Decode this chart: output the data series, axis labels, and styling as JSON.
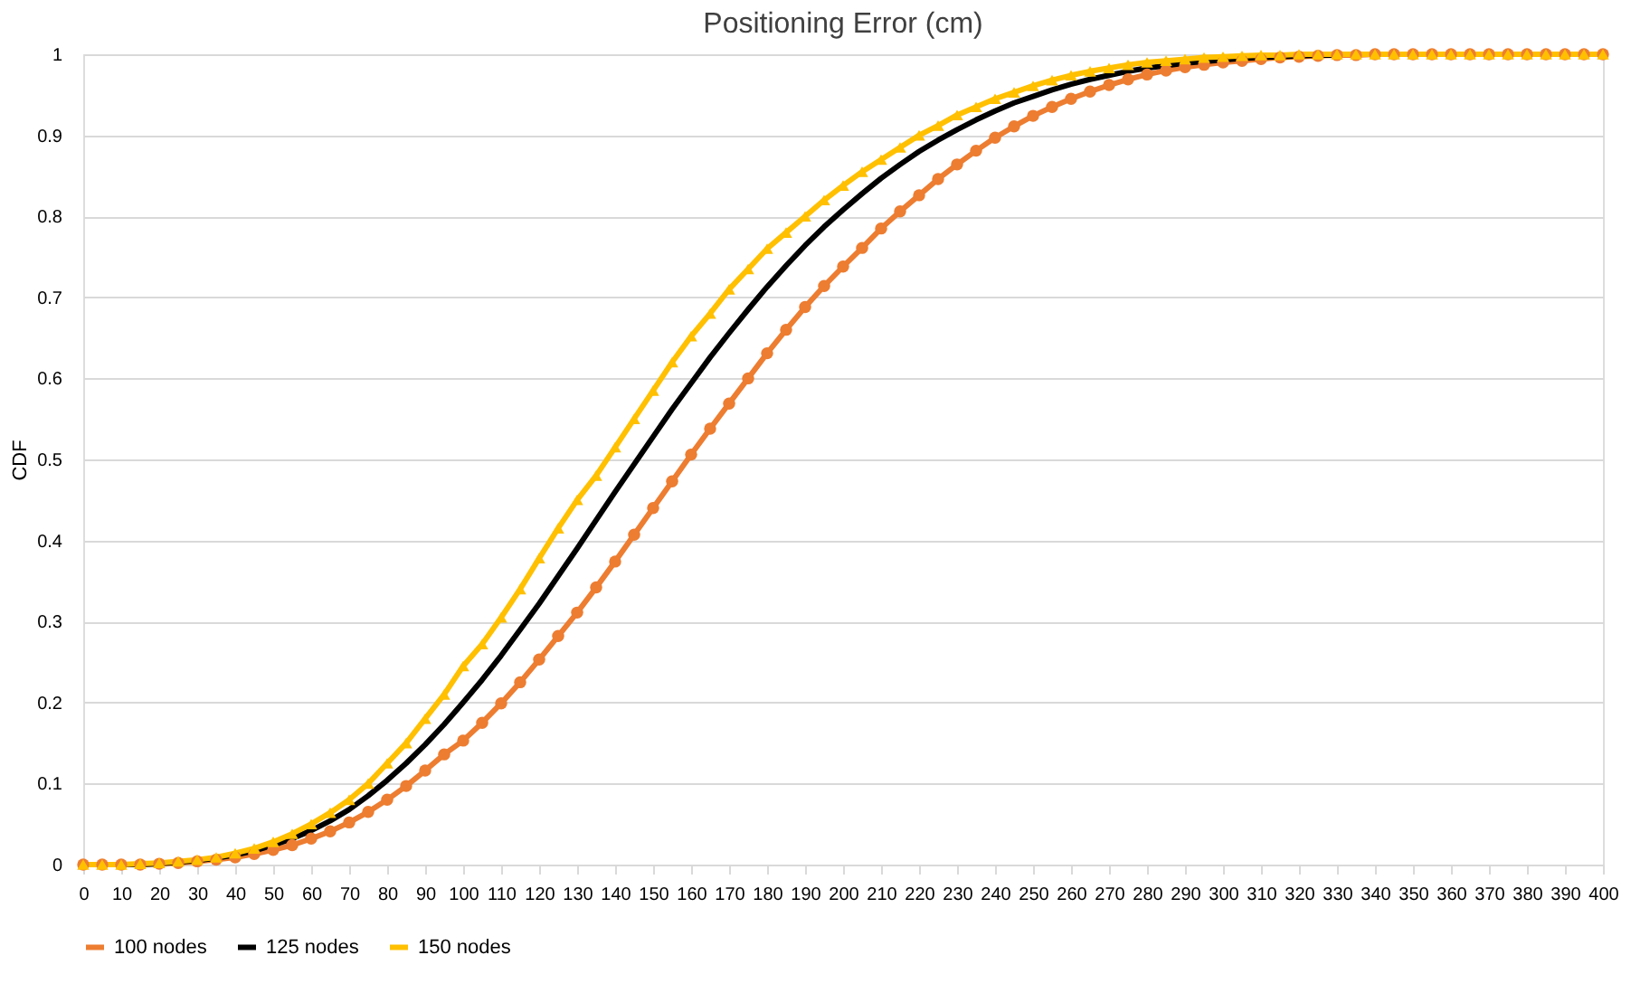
{
  "chart_data": {
    "type": "line",
    "title": "Positioning Error (cm)",
    "ylabel": "CDF",
    "x": [
      0,
      5,
      10,
      15,
      20,
      25,
      30,
      35,
      40,
      45,
      50,
      55,
      60,
      65,
      70,
      75,
      80,
      85,
      90,
      95,
      100,
      105,
      110,
      115,
      120,
      125,
      130,
      135,
      140,
      145,
      150,
      155,
      160,
      165,
      170,
      175,
      180,
      185,
      190,
      195,
      200,
      205,
      210,
      215,
      220,
      225,
      230,
      235,
      240,
      245,
      250,
      255,
      260,
      265,
      270,
      275,
      280,
      285,
      290,
      295,
      300,
      305,
      310,
      315,
      320,
      325,
      330,
      335,
      340,
      345,
      350,
      355,
      360,
      365,
      370,
      375,
      380,
      385,
      390,
      395,
      400
    ],
    "xlim": [
      0,
      400
    ],
    "xticks": [
      0,
      10,
      20,
      30,
      40,
      50,
      60,
      70,
      80,
      90,
      100,
      110,
      120,
      130,
      140,
      150,
      160,
      170,
      180,
      190,
      200,
      210,
      220,
      230,
      240,
      250,
      260,
      270,
      280,
      290,
      300,
      310,
      320,
      330,
      340,
      350,
      360,
      370,
      380,
      390,
      400
    ],
    "ylim": [
      0,
      1
    ],
    "yticks": [
      0,
      0.1,
      0.2,
      0.3,
      0.4,
      0.5,
      0.6,
      0.7,
      0.8,
      0.9,
      1
    ],
    "grid": "y",
    "legend": "bottom",
    "series": [
      {
        "name": "100 nodes",
        "color": "#ed7d31",
        "marker": "circle",
        "values": [
          0,
          0,
          0,
          0,
          0.001,
          0.002,
          0.004,
          0.006,
          0.009,
          0.013,
          0.018,
          0.024,
          0.032,
          0.041,
          0.052,
          0.065,
          0.08,
          0.097,
          0.116,
          0.136,
          0.153,
          0.175,
          0.199,
          0.225,
          0.253,
          0.282,
          0.311,
          0.342,
          0.374,
          0.407,
          0.44,
          0.473,
          0.506,
          0.538,
          0.569,
          0.6,
          0.631,
          0.66,
          0.688,
          0.714,
          0.738,
          0.761,
          0.785,
          0.806,
          0.826,
          0.846,
          0.864,
          0.881,
          0.897,
          0.911,
          0.924,
          0.935,
          0.945,
          0.954,
          0.962,
          0.969,
          0.975,
          0.98,
          0.984,
          0.987,
          0.99,
          0.992,
          0.994,
          0.996,
          0.997,
          0.998,
          0.999,
          0.999,
          1,
          1,
          1,
          1,
          1,
          1,
          1,
          1,
          1,
          1,
          1,
          1,
          1
        ]
      },
      {
        "name": "125 nodes",
        "color": "#000000",
        "marker": "none",
        "values": [
          null,
          null,
          0,
          0,
          0.001,
          0.003,
          0.005,
          0.008,
          0.012,
          0.017,
          0.024,
          0.032,
          0.042,
          0.054,
          0.068,
          0.085,
          0.104,
          0.125,
          0.148,
          0.173,
          0.2,
          0.228,
          0.258,
          0.29,
          0.322,
          0.356,
          0.39,
          0.425,
          0.46,
          0.494,
          0.528,
          0.562,
          0.594,
          0.626,
          0.656,
          0.685,
          0.713,
          0.739,
          0.764,
          0.787,
          0.808,
          0.828,
          0.847,
          0.864,
          0.88,
          0.894,
          0.907,
          0.919,
          0.93,
          0.94,
          0.948,
          0.956,
          0.963,
          0.969,
          0.974,
          0.979,
          0.983,
          0.986,
          0.989,
          0.991,
          0.993,
          0.995,
          0.996,
          0.997,
          0.998,
          0.999,
          0.999,
          null,
          null,
          null,
          null,
          null,
          null,
          null,
          null,
          null,
          null,
          null,
          null,
          null,
          null
        ]
      },
      {
        "name": "150 nodes",
        "color": "#ffc000",
        "marker": "triangle",
        "values": [
          0,
          0,
          0,
          0.001,
          0.002,
          0.004,
          0.006,
          0.009,
          0.014,
          0.02,
          0.028,
          0.038,
          0.05,
          0.064,
          0.08,
          0.1,
          0.125,
          0.15,
          0.18,
          0.21,
          0.245,
          0.272,
          0.305,
          0.34,
          0.378,
          0.415,
          0.45,
          0.48,
          0.515,
          0.55,
          0.585,
          0.62,
          0.652,
          0.68,
          0.71,
          0.735,
          0.76,
          0.78,
          0.8,
          0.82,
          0.838,
          0.855,
          0.87,
          0.885,
          0.9,
          0.912,
          0.925,
          0.935,
          0.945,
          0.953,
          0.961,
          0.968,
          0.974,
          0.979,
          0.983,
          0.987,
          0.99,
          0.992,
          0.994,
          0.996,
          0.997,
          0.998,
          0.999,
          0.999,
          1,
          1,
          1,
          1,
          1,
          1,
          1,
          1,
          1,
          1,
          1,
          1,
          1,
          1,
          1,
          1,
          1
        ]
      }
    ]
  }
}
